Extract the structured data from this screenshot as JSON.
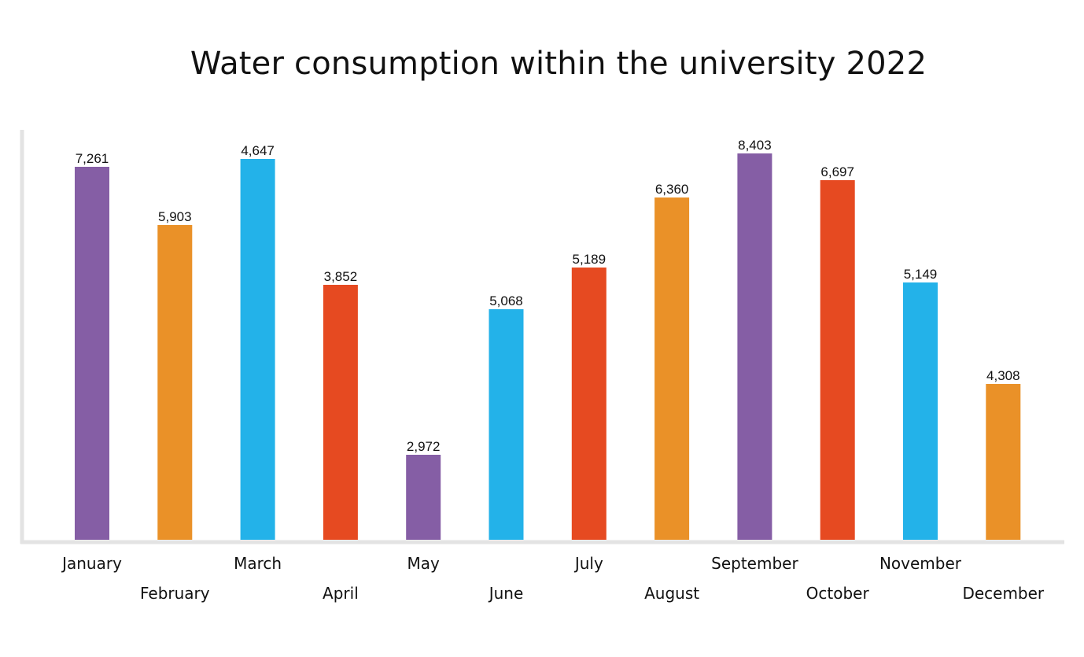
{
  "chart_data": {
    "type": "bar",
    "title": "Water consumption within the university 2022",
    "xlabel": "",
    "ylabel": "",
    "categories": [
      "January",
      "February",
      "March",
      "April",
      "May",
      "June",
      "July",
      "August",
      "September",
      "October",
      "November",
      "December"
    ],
    "values": [
      7261,
      5903,
      4647,
      3852,
      2972,
      5068,
      5189,
      6360,
      8403,
      6697,
      5149,
      4308
    ],
    "value_labels": [
      "7,261",
      "5,903",
      "4,647",
      "3,852",
      "2,972",
      "5,068",
      "5,189",
      "6,360",
      "8,403",
      "6,697",
      "5,149",
      "4,308"
    ],
    "bar_colors": [
      "#855ea5",
      "#ea9128",
      "#23b2e9",
      "#e64a21",
      "#855ea5",
      "#23b2e9",
      "#e64a21",
      "#ea9128",
      "#855ea5",
      "#e64a21",
      "#23b2e9",
      "#ea9128"
    ],
    "axis_color": "#e3e3e3",
    "grid": false,
    "legend": "none"
  }
}
